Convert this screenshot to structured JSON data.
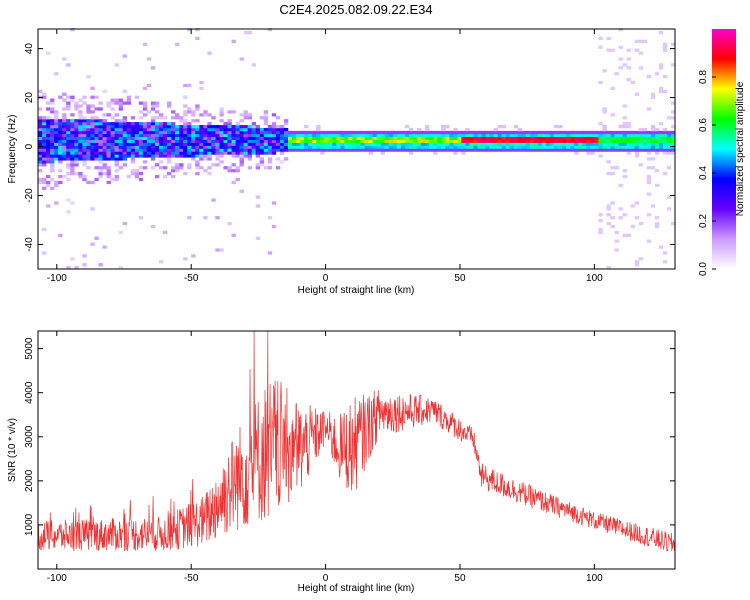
{
  "page": {
    "title": "C2E4.2025.082.09.22.E34"
  },
  "chart_data": [
    {
      "type": "heatmap",
      "xlabel": "Height of straight line (km)",
      "ylabel": "Frequency (Hz)",
      "xlim": [
        -107,
        130
      ],
      "ylim": [
        -50,
        48
      ],
      "xticks": [
        -100,
        -50,
        0,
        50,
        100
      ],
      "yticks": [
        -40,
        -20,
        0,
        20,
        40
      ],
      "colorbar": {
        "label": "Normalized spectral amplitude",
        "range": [
          0.0,
          1.0
        ],
        "ticks": [
          "0.0",
          "0.2",
          "0.4",
          "0.6",
          "0.8"
        ],
        "colors": [
          "#ffffff",
          "#cc99ff",
          "#6600ff",
          "#0000ff",
          "#00ffff",
          "#00ff00",
          "#ffff00",
          "#ff0000",
          "#ff00cc"
        ]
      },
      "features": {
        "band_center_hz": 2,
        "noisy_region_km": [
          -107,
          -15
        ],
        "strong_region_km": [
          50,
          100
        ]
      }
    },
    {
      "type": "line",
      "xlabel": "Height of straight line (km)",
      "ylabel": "SNR (10 * v/v)",
      "xlim": [
        -107,
        130
      ],
      "ylim": [
        0,
        5400
      ],
      "xticks": [
        -100,
        -50,
        0,
        50,
        100
      ],
      "yticks": [
        1000,
        2000,
        3000,
        4000,
        5000
      ],
      "color": "#ee3333",
      "envelope": [
        [
          -107,
          400,
          1100
        ],
        [
          -60,
          400,
          1200
        ],
        [
          -45,
          500,
          1700
        ],
        [
          -35,
          800,
          3000
        ],
        [
          -20,
          1100,
          4500
        ],
        [
          -10,
          1600,
          3800
        ],
        [
          0,
          2800,
          3600
        ],
        [
          5,
          2000,
          3500
        ],
        [
          10,
          1600,
          3900
        ],
        [
          20,
          3000,
          4100
        ],
        [
          40,
          3300,
          3900
        ],
        [
          55,
          2700,
          3200
        ],
        [
          58,
          1800,
          2400
        ],
        [
          80,
          1300,
          1800
        ],
        [
          100,
          900,
          1300
        ],
        [
          130,
          300,
          800
        ]
      ]
    }
  ]
}
